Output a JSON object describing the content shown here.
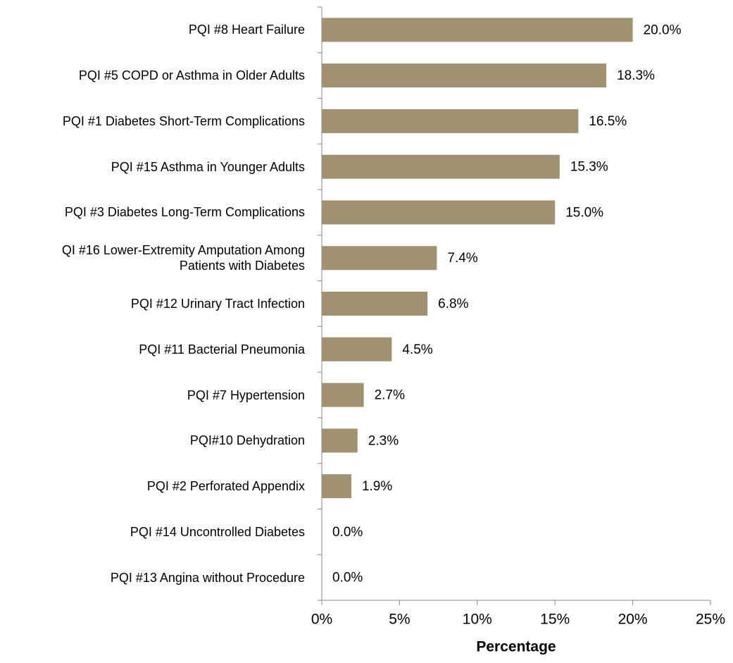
{
  "chart_data": {
    "type": "barh",
    "categories": [
      "PQI #8 Heart Failure",
      "PQI #5 COPD or Asthma in Older Adults",
      "PQI #1  Diabetes Short-Term Complications",
      "PQI #15 Asthma in Younger Adults",
      "PQI #3  Diabetes Long-Term Complications",
      "QI #16 Lower-Extremity Amputation Among\nPatients with Diabetes",
      "PQI #12 Urinary Tract Infection",
      "PQI #11 Bacterial Pneumonia",
      "PQI #7 Hypertension",
      "PQI#10 Dehydration",
      "PQI #2 Perforated Appendix",
      "PQI #14 Uncontrolled Diabetes",
      "PQI #13 Angina without Procedure"
    ],
    "values": [
      20.0,
      18.3,
      16.5,
      15.3,
      15.0,
      7.4,
      6.8,
      4.5,
      2.7,
      2.3,
      1.9,
      0.0,
      0.0
    ],
    "value_labels": [
      "20.0%",
      "18.3%",
      "16.5%",
      "15.3%",
      "15.0%",
      "7.4%",
      "6.8%",
      "4.5%",
      "2.7%",
      "2.3%",
      "1.9%",
      "0.0%",
      "0.0%"
    ],
    "color": "#a09170",
    "xlim": [
      0,
      25
    ],
    "xticks": [
      {
        "value": 0,
        "label": "0%"
      },
      {
        "value": 5,
        "label": "5%"
      },
      {
        "value": 10,
        "label": "10%"
      },
      {
        "value": 15,
        "label": "15%"
      },
      {
        "value": 20,
        "label": "20%"
      },
      {
        "value": 25,
        "label": "25%"
      }
    ],
    "xlabel": "Percentage",
    "grid": false
  }
}
